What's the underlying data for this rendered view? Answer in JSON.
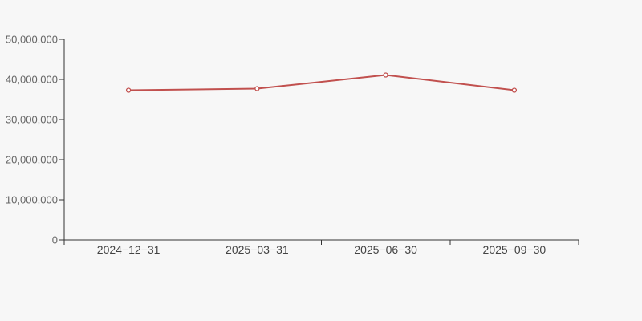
{
  "chart_data": {
    "type": "line",
    "categories": [
      "2024−12−31",
      "2025−03−31",
      "2025−06−30",
      "2025−09−30"
    ],
    "values": [
      37300000,
      37700000,
      41100000,
      37300000
    ],
    "series": [
      {
        "name": "",
        "values": [
          37300000,
          37700000,
          41100000,
          37300000
        ]
      }
    ],
    "title": "",
    "xlabel": "",
    "ylabel": "",
    "ylim": [
      0,
      50000000
    ],
    "y_tick_step": 10000000,
    "y_tick_labels": [
      "0",
      "10,000,000",
      "20,000,000",
      "30,000,000",
      "40,000,000",
      "50,000,000"
    ],
    "grid": false,
    "legend": "none",
    "marker": "open-circle",
    "axis_style": "category-boundary-ticks",
    "colors": {
      "background": "#f7f7f7",
      "line": "#c1504e",
      "marker_fill": "#ffffff",
      "axis": "#333333",
      "y_tick_text": "#666666",
      "x_tick_text": "#444444"
    }
  }
}
